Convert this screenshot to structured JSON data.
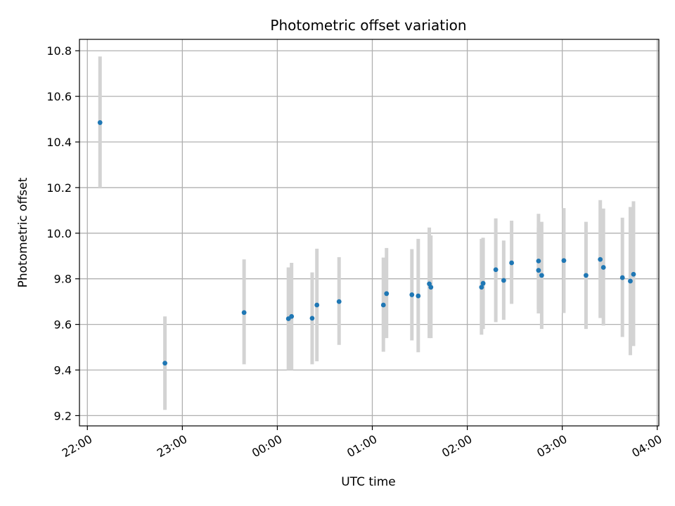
{
  "chart_data": {
    "type": "scatter",
    "title": "Photometric offset variation",
    "xlabel": "UTC time",
    "ylabel": "Photometric offset",
    "x_axis": "time",
    "xlim": [
      "21:55",
      "04:01"
    ],
    "ylim": [
      9.155,
      10.85
    ],
    "x_ticks": [
      "22:00",
      "23:00",
      "00:00",
      "01:00",
      "02:00",
      "03:00",
      "04:00"
    ],
    "y_ticks": [
      9.2,
      9.4,
      9.6,
      9.8,
      10.0,
      10.2,
      10.4,
      10.6,
      10.8
    ],
    "grid": true,
    "point_color": "#1f77b4",
    "errorbar_color": "#d3d3d3",
    "points": [
      {
        "x": "22:08",
        "y": 10.485,
        "lo": 10.2,
        "hi": 10.775
      },
      {
        "x": "22:49",
        "y": 9.43,
        "lo": 9.225,
        "hi": 9.635
      },
      {
        "x": "23:39",
        "y": 9.652,
        "lo": 9.425,
        "hi": 9.885
      },
      {
        "x": "00:07",
        "y": 9.625,
        "lo": 9.4,
        "hi": 9.85
      },
      {
        "x": "00:09",
        "y": 9.635,
        "lo": 9.4,
        "hi": 9.87
      },
      {
        "x": "00:22",
        "y": 9.627,
        "lo": 9.425,
        "hi": 9.828
      },
      {
        "x": "00:25",
        "y": 9.685,
        "lo": 9.438,
        "hi": 9.932
      },
      {
        "x": "00:39",
        "y": 9.7,
        "lo": 9.51,
        "hi": 9.895
      },
      {
        "x": "01:07",
        "y": 9.685,
        "lo": 9.48,
        "hi": 9.893
      },
      {
        "x": "01:09",
        "y": 9.735,
        "lo": 9.54,
        "hi": 9.935
      },
      {
        "x": "01:25",
        "y": 9.73,
        "lo": 9.53,
        "hi": 9.93
      },
      {
        "x": "01:29",
        "y": 9.725,
        "lo": 9.478,
        "hi": 9.975
      },
      {
        "x": "01:36",
        "y": 9.778,
        "lo": 9.54,
        "hi": 10.025
      },
      {
        "x": "01:37",
        "y": 9.763,
        "lo": 9.54,
        "hi": 9.99
      },
      {
        "x": "02:09",
        "y": 9.763,
        "lo": 9.555,
        "hi": 9.975
      },
      {
        "x": "02:10",
        "y": 9.78,
        "lo": 9.58,
        "hi": 9.98
      },
      {
        "x": "02:18",
        "y": 9.84,
        "lo": 9.61,
        "hi": 10.065
      },
      {
        "x": "02:23",
        "y": 9.793,
        "lo": 9.62,
        "hi": 9.968
      },
      {
        "x": "02:28",
        "y": 9.87,
        "lo": 9.69,
        "hi": 10.055
      },
      {
        "x": "02:45",
        "y": 9.837,
        "lo": 9.648,
        "hi": 10.025
      },
      {
        "x": "02:45",
        "y": 9.878,
        "lo": 9.67,
        "hi": 10.085
      },
      {
        "x": "02:47",
        "y": 9.815,
        "lo": 9.58,
        "hi": 10.05
      },
      {
        "x": "03:01",
        "y": 9.88,
        "lo": 9.65,
        "hi": 10.11
      },
      {
        "x": "03:15",
        "y": 9.815,
        "lo": 9.58,
        "hi": 10.05
      },
      {
        "x": "03:24",
        "y": 9.885,
        "lo": 9.628,
        "hi": 10.145
      },
      {
        "x": "03:26",
        "y": 9.85,
        "lo": 9.595,
        "hi": 10.108
      },
      {
        "x": "03:38",
        "y": 9.805,
        "lo": 9.545,
        "hi": 10.068
      },
      {
        "x": "03:43",
        "y": 9.79,
        "lo": 9.465,
        "hi": 10.115
      },
      {
        "x": "03:45",
        "y": 9.82,
        "lo": 9.505,
        "hi": 10.14
      }
    ]
  }
}
